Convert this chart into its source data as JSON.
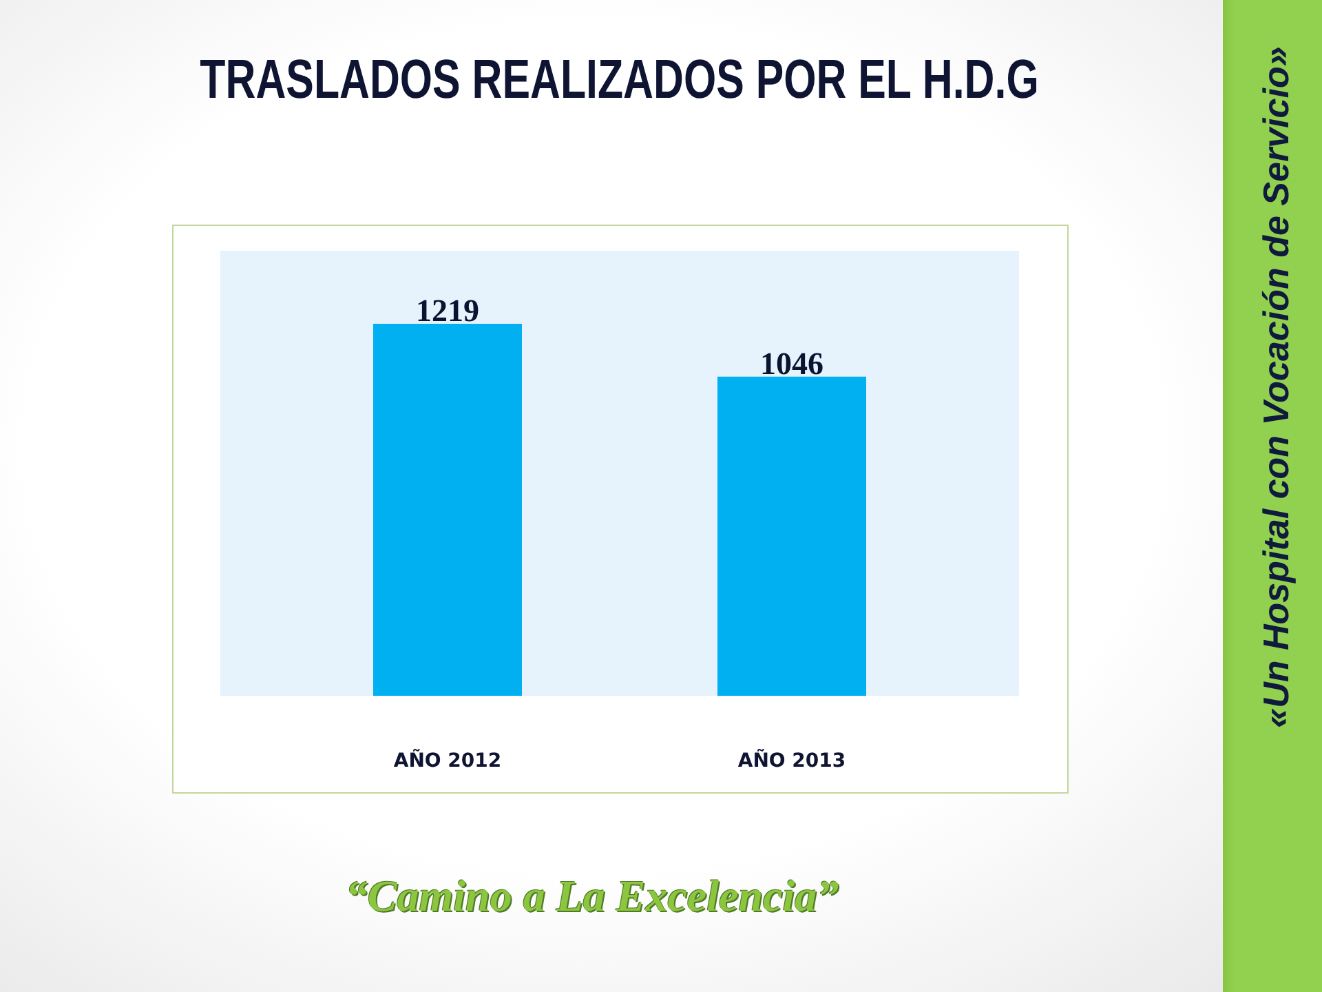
{
  "chart_data": {
    "type": "bar",
    "title": "TRASLADOS REALIZADOS POR EL H.D.G",
    "categories": [
      "AÑO 2012",
      "AÑO 2013"
    ],
    "values": [
      1219,
      1046
    ],
    "color": "#00b0f0",
    "data_labels": true,
    "annotations": [
      "«Un Hospital con Vocación de Servicio»",
      "“Camino a La Excelencia”"
    ]
  }
}
